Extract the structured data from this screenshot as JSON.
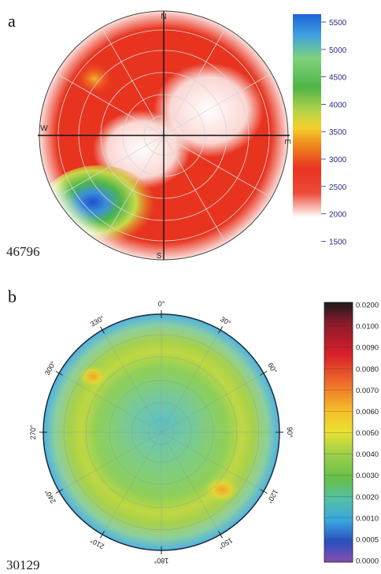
{
  "panel_a": {
    "label": "a",
    "sample_id": "46796",
    "directions": [
      "N",
      "E",
      "S",
      "W"
    ],
    "colorbar": {
      "ticks": [
        "5500",
        "5000",
        "4500",
        "4000",
        "3500",
        "3000",
        "2500",
        "2000",
        "1500"
      ],
      "colors": [
        "#1f63d6",
        "#3ea0e2",
        "#7fd27a",
        "#4eb548",
        "#b9d34a",
        "#f4d02a",
        "#f08a1e",
        "#e8341f",
        "#ee4a3a",
        "#ffffff"
      ]
    }
  },
  "panel_b": {
    "label": "b",
    "sample_id": "30129",
    "angles": [
      "0°",
      "30°",
      "60°",
      "90°",
      "120°",
      "150°",
      "180°",
      "210°",
      "240°",
      "270°",
      "300°",
      "330°"
    ],
    "colorbar": {
      "ticks": [
        "0.0200",
        "0.0100",
        "0.0090",
        "0.0080",
        "0.0070",
        "0.0060",
        "0.0050",
        "0.0040",
        "0.0030",
        "0.0020",
        "0.0010",
        "0.0005",
        "0.0000"
      ],
      "colors": [
        "#1a1a1a",
        "#8b1a2a",
        "#c8202a",
        "#e8362a",
        "#f07a24",
        "#f6c02a",
        "#e9e232",
        "#9fd048",
        "#66c04a",
        "#52c0a8",
        "#3aa6e0",
        "#2a4fbf",
        "#8a4fb0"
      ]
    }
  }
}
